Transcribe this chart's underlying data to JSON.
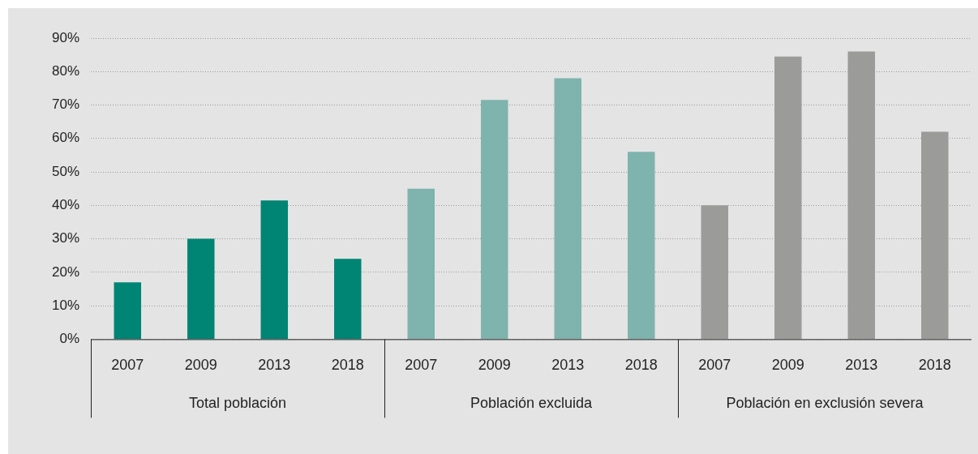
{
  "chart_data": {
    "type": "bar",
    "categories": [
      "2007",
      "2009",
      "2013",
      "2018",
      "2007",
      "2009",
      "2013",
      "2018",
      "2007",
      "2009",
      "2013",
      "2018"
    ],
    "series": [
      {
        "color": "#008474",
        "values": [
          17,
          30,
          41.5,
          24,
          null,
          null,
          null,
          null,
          null,
          null,
          null,
          null
        ]
      },
      {
        "color": "#7fb3ad",
        "values": [
          null,
          null,
          null,
          null,
          45,
          71.5,
          78,
          56,
          null,
          null,
          null,
          null
        ]
      },
      {
        "color": "#9b9b99",
        "values": [
          null,
          null,
          null,
          null,
          null,
          null,
          null,
          null,
          40,
          84.5,
          86,
          62
        ]
      }
    ],
    "ylim": [
      0,
      90
    ],
    "yticks": [
      {
        "value": 0,
        "label": "0%"
      },
      {
        "value": 10,
        "label": "10%"
      },
      {
        "value": 20,
        "label": "20%"
      },
      {
        "value": 30,
        "label": "30%"
      },
      {
        "value": 40,
        "label": "40%"
      },
      {
        "value": 50,
        "label": "50%"
      },
      {
        "value": 60,
        "label": "60%"
      },
      {
        "value": 70,
        "label": "70%"
      },
      {
        "value": 80,
        "label": "80%"
      },
      {
        "value": 90,
        "label": "90%"
      }
    ],
    "annotations": [
      "Total población",
      "Población excluida",
      "Población en exclusión severa"
    ],
    "grid": "y",
    "legend": false
  }
}
